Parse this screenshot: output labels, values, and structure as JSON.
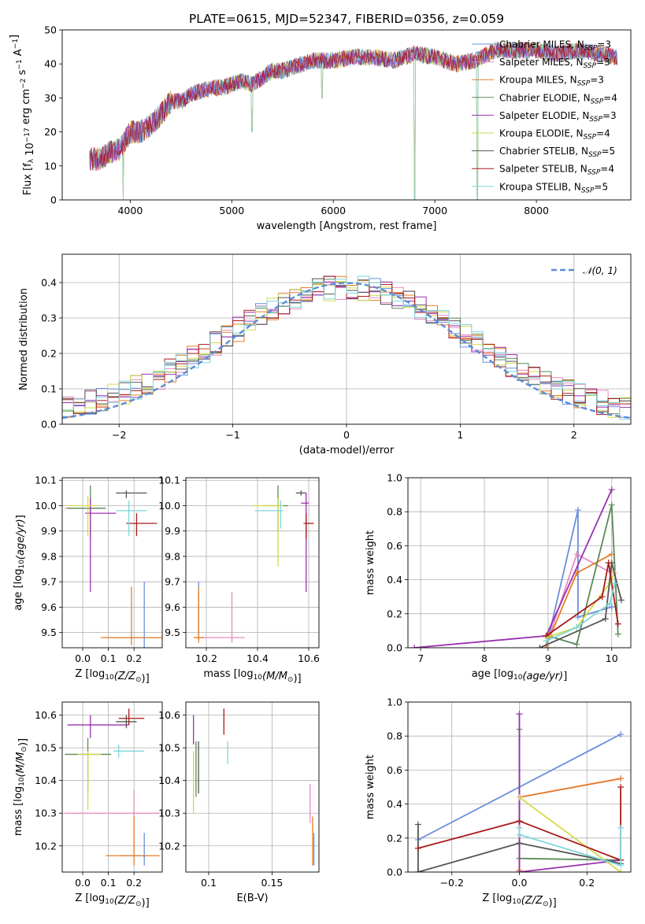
{
  "figure_title": "PLATE=0615, MJD=52347, FIBERID=0356, z=0.059",
  "colors": {
    "cm": "#6a8fdc",
    "sm": "#e78ac3",
    "km": "#e87d24",
    "ce": "#5a8a5a",
    "se": "#9b30b0",
    "ke": "#d6d94a",
    "cs": "#555555",
    "ss": "#aa1a1a",
    "ks": "#7fd6dc"
  },
  "legend_spectrum": [
    {
      "key": "cm",
      "label": "Chabrier MILES, N",
      "sub": "SSP",
      "tail": "=3"
    },
    {
      "key": "sm",
      "label": "Salpeter MILES, N",
      "sub": "SSP",
      "tail": "=3"
    },
    {
      "key": "km",
      "label": "Kroupa MILES, N",
      "sub": "SSP",
      "tail": "=3"
    },
    {
      "key": "ce",
      "label": "Chabrier ELODIE, N",
      "sub": "SSP",
      "tail": "=4"
    },
    {
      "key": "se",
      "label": "Salpeter ELODIE, N",
      "sub": "SSP",
      "tail": "=3"
    },
    {
      "key": "ke",
      "label": "Kroupa ELODIE, N",
      "sub": "SSP",
      "tail": "=4"
    },
    {
      "key": "cs",
      "label": "Chabrier STELIB, N",
      "sub": "SSP",
      "tail": "=5"
    },
    {
      "key": "ss",
      "label": "Salpeter STELIB, N",
      "sub": "SSP",
      "tail": "=4"
    },
    {
      "key": "ks",
      "label": "Kroupa STELIB, N",
      "sub": "SSP",
      "tail": "=5"
    }
  ],
  "legend_hist": "𝒩(0, 1)",
  "chart_data": [
    {
      "id": "spectrum",
      "type": "line",
      "xlabel": "wavelength [Angstrom, rest frame]",
      "ylabel": "Flux [f_λ 10^-17 erg cm^-2 s^-1 A^-1]",
      "xlim": [
        3330,
        8930
      ],
      "ylim": [
        0,
        50
      ],
      "xticks": [
        4000,
        5000,
        6000,
        7000,
        8000
      ],
      "yticks": [
        0,
        10,
        20,
        30,
        40,
        50
      ],
      "grid": false,
      "legend": "top-right",
      "continuum": {
        "x": [
          3600,
          3700,
          3800,
          3900,
          4000,
          4100,
          4200,
          4300,
          4400,
          4500,
          4600,
          4700,
          4800,
          4900,
          5000,
          5100,
          5200,
          5300,
          5400,
          5500,
          5600,
          5700,
          5800,
          5900,
          6000,
          6200,
          6400,
          6600,
          6800,
          7000,
          7200,
          7400,
          7600,
          7800,
          8000,
          8200,
          8400,
          8600,
          8800
        ],
        "y": [
          12,
          12,
          14,
          15,
          20,
          20,
          22,
          25,
          29,
          29,
          31,
          32,
          33,
          33,
          34,
          35,
          34,
          36,
          38,
          38,
          39,
          40,
          41,
          41,
          41,
          42,
          42,
          41,
          43,
          42,
          40,
          41,
          44,
          44,
          44,
          43,
          44,
          43,
          42
        ]
      },
      "noise_amplitude": 2.5,
      "dips": [
        {
          "x": 3930,
          "y": 0
        },
        {
          "x": 5200,
          "y": 20
        },
        {
          "x": 5890,
          "y": 30
        },
        {
          "x": 6800,
          "y": 0
        },
        {
          "x": 7420,
          "y": 0
        }
      ]
    },
    {
      "id": "residual_histogram",
      "type": "histogram",
      "xlabel": "(data-model)/error",
      "ylabel": "Normed distribution",
      "xlim": [
        -2.5,
        2.5
      ],
      "ylim": [
        0,
        0.48
      ],
      "xticks": [
        -2,
        -1,
        0,
        1,
        2
      ],
      "yticks": [
        0.0,
        0.1,
        0.2,
        0.3,
        0.4
      ],
      "grid": true,
      "legend": "top-right",
      "bin_width": 0.1,
      "gaussian": {
        "mean": 0,
        "sigma": 1
      }
    },
    {
      "id": "age_vs_Z",
      "type": "errorbar",
      "xlabel": "Z [log10(Z/Z⊙)]",
      "ylabel": "age [log10(age/yr)]",
      "xlim": [
        -0.08,
        0.31
      ],
      "ylim": [
        9.44,
        10.11
      ],
      "xticks": [
        0.0,
        0.1,
        0.2
      ],
      "yticks": [
        9.5,
        9.6,
        9.7,
        9.8,
        9.9,
        10.0,
        10.1
      ],
      "grid": true,
      "points": [
        {
          "key": "cm",
          "x": 0.24,
          "y": 9.48,
          "xerr": [
            0.15,
            0.06
          ],
          "yerr": [
            0.06,
            0.22
          ]
        },
        {
          "key": "sm",
          "x": 0.03,
          "y": 9.99,
          "xerr": [
            0.1,
            0.04
          ],
          "yerr": [
            0.03,
            0.02
          ]
        },
        {
          "key": "km",
          "x": 0.19,
          "y": 9.48,
          "xerr": [
            0.12,
            0.12
          ],
          "yerr": [
            0.03,
            0.2
          ]
        },
        {
          "key": "ce",
          "x": 0.03,
          "y": 9.99,
          "xerr": [
            0.09,
            0.06
          ],
          "yerr": [
            0.12,
            0.09
          ]
        },
        {
          "key": "se",
          "x": 0.03,
          "y": 9.97,
          "xerr": [
            0.02,
            0.1
          ],
          "yerr": [
            0.31,
            0.06
          ]
        },
        {
          "key": "ke",
          "x": 0.02,
          "y": 10.0,
          "xerr": [
            0.08,
            0.04
          ],
          "yerr": [
            0.12,
            0.04
          ]
        },
        {
          "key": "cs",
          "x": 0.17,
          "y": 10.05,
          "xerr": [
            0.04,
            0.08
          ],
          "yerr": [
            0.02,
            0.01
          ]
        },
        {
          "key": "ss",
          "x": 0.21,
          "y": 9.93,
          "xerr": [
            0.04,
            0.08
          ],
          "yerr": [
            0.05,
            0.04
          ]
        },
        {
          "key": "ks",
          "x": 0.18,
          "y": 9.98,
          "xerr": [
            0.05,
            0.07
          ],
          "yerr": [
            0.1,
            0.04
          ]
        }
      ]
    },
    {
      "id": "age_vs_mass",
      "type": "errorbar",
      "xlabel": "mass [log10(M/M⊙)]",
      "ylabel": "",
      "xlim": [
        10.12,
        10.64
      ],
      "ylim": [
        9.44,
        10.11
      ],
      "xticks": [
        10.2,
        10.4,
        10.6
      ],
      "yticks": [
        9.5,
        9.6,
        9.7,
        9.8,
        9.9,
        10.0,
        10.1
      ],
      "grid": true,
      "points": [
        {
          "key": "cm",
          "x": 10.17,
          "y": 9.48,
          "xerr": [
            0.01,
            0.02
          ],
          "yerr": [
            0.01,
            0.22
          ]
        },
        {
          "key": "sm",
          "x": 10.3,
          "y": 9.48,
          "xerr": [
            0.14,
            0.05
          ],
          "yerr": [
            0.02,
            0.18
          ]
        },
        {
          "key": "km",
          "x": 10.17,
          "y": 9.48,
          "xerr": [
            0.02,
            0.02
          ],
          "yerr": [
            0.02,
            0.2
          ]
        },
        {
          "key": "ce",
          "x": 10.48,
          "y": 10.0,
          "xerr": [
            0.06,
            0.04
          ],
          "yerr": [
            0.1,
            0.08
          ]
        },
        {
          "key": "se",
          "x": 10.59,
          "y": 10.01,
          "xerr": [
            0.02,
            0.01
          ],
          "yerr": [
            0.35,
            0.04
          ]
        },
        {
          "key": "ke",
          "x": 10.48,
          "y": 10.0,
          "xerr": [
            0.1,
            0.02
          ],
          "yerr": [
            0.24,
            0.03
          ]
        },
        {
          "key": "cs",
          "x": 10.57,
          "y": 10.05,
          "xerr": [
            0.02,
            0.02
          ],
          "yerr": [
            0.01,
            0.01
          ]
        },
        {
          "key": "ss",
          "x": 10.59,
          "y": 9.93,
          "xerr": [
            0.01,
            0.03
          ],
          "yerr": [
            0.06,
            0.04
          ]
        },
        {
          "key": "ks",
          "x": 10.49,
          "y": 9.98,
          "xerr": [
            0.1,
            0.01
          ],
          "yerr": [
            0.07,
            0.04
          ]
        }
      ]
    },
    {
      "id": "weight_vs_age",
      "type": "line",
      "xlabel": "age [log10(age/yr)]",
      "ylabel": "mass weight",
      "xlim": [
        6.8,
        10.3
      ],
      "ylim": [
        0,
        1.0
      ],
      "xticks": [
        7,
        8,
        9,
        10
      ],
      "yticks": [
        0.0,
        0.2,
        0.4,
        0.6,
        0.8,
        1.0
      ],
      "grid": true,
      "series": [
        {
          "key": "cm",
          "x": [
            8.97,
            9.47,
            9.47,
            10.0
          ],
          "y": [
            0.0,
            0.81,
            0.18,
            0.24
          ]
        },
        {
          "key": "sm",
          "x": [
            8.97,
            9.45,
            10.0
          ],
          "y": [
            0.01,
            0.55,
            0.44
          ]
        },
        {
          "key": "km",
          "x": [
            8.97,
            9.45,
            10.0
          ],
          "y": [
            0.01,
            0.44,
            0.55
          ]
        },
        {
          "key": "ce",
          "x": [
            9.0,
            9.45,
            10.0,
            10.1
          ],
          "y": [
            0.07,
            0.02,
            0.84,
            0.08
          ]
        },
        {
          "key": "se",
          "x": [
            6.9,
            8.97,
            10.0
          ],
          "y": [
            0.0,
            0.07,
            0.93
          ]
        },
        {
          "key": "ke",
          "x": [
            8.97,
            9.45,
            9.97,
            10.05
          ],
          "y": [
            0.06,
            0.12,
            0.38,
            0.44
          ]
        },
        {
          "key": "cs",
          "x": [
            8.87,
            9.9,
            10.0,
            10.15
          ],
          "y": [
            0.0,
            0.17,
            0.5,
            0.28
          ]
        },
        {
          "key": "ss",
          "x": [
            8.97,
            9.85,
            9.95,
            10.1
          ],
          "y": [
            0.07,
            0.3,
            0.5,
            0.14
          ]
        },
        {
          "key": "ks",
          "x": [
            8.97,
            9.45,
            9.97,
            10.05
          ],
          "y": [
            0.04,
            0.12,
            0.26,
            0.38
          ]
        }
      ]
    },
    {
      "id": "mass_vs_Z",
      "type": "errorbar",
      "xlabel": "Z [log10(Z/Z⊙)]",
      "ylabel": "mass [log10(M/M⊙)]",
      "xlim": [
        -0.08,
        0.31
      ],
      "ylim": [
        10.12,
        10.64
      ],
      "xticks": [
        0.0,
        0.1,
        0.2
      ],
      "yticks": [
        10.2,
        10.3,
        10.4,
        10.5,
        10.6
      ],
      "grid": true,
      "points": [
        {
          "key": "cm",
          "x": 0.24,
          "y": 10.17,
          "xerr": [
            0.09,
            0.01
          ],
          "yerr": [
            0.03,
            0.07
          ]
        },
        {
          "key": "sm",
          "x": 0.2,
          "y": 10.3,
          "xerr": [
            0.27,
            0.1
          ],
          "yerr": [
            0.11,
            0.07
          ]
        },
        {
          "key": "km",
          "x": 0.2,
          "y": 10.17,
          "xerr": [
            0.11,
            0.1
          ],
          "yerr": [
            0.03,
            0.12
          ]
        },
        {
          "key": "ce",
          "x": 0.02,
          "y": 10.48,
          "xerr": [
            0.09,
            0.09
          ],
          "yerr": [
            0.12,
            0.05
          ]
        },
        {
          "key": "se",
          "x": 0.03,
          "y": 10.57,
          "xerr": [
            0.09,
            0.15
          ],
          "yerr": [
            0.04,
            0.03
          ]
        },
        {
          "key": "ke",
          "x": 0.02,
          "y": 10.48,
          "xerr": [
            0.04,
            0.05
          ],
          "yerr": [
            0.17,
            0.01
          ]
        },
        {
          "key": "cs",
          "x": 0.17,
          "y": 10.58,
          "xerr": [
            0.04,
            0.04
          ],
          "yerr": [
            0.02,
            0.02
          ]
        },
        {
          "key": "ss",
          "x": 0.18,
          "y": 10.59,
          "xerr": [
            0.04,
            0.06
          ],
          "yerr": [
            0.02,
            0.03
          ]
        },
        {
          "key": "ks",
          "x": 0.14,
          "y": 10.49,
          "xerr": [
            0.02,
            0.1
          ],
          "yerr": [
            0.02,
            0.02
          ]
        }
      ]
    },
    {
      "id": "mass_vs_EBV",
      "type": "errorbar",
      "xlabel": "E(B-V)",
      "ylabel": "",
      "xlim": [
        0.082,
        0.187
      ],
      "ylim": [
        10.12,
        10.64
      ],
      "xticks": [
        0.1,
        0.15
      ],
      "yticks": [
        10.2,
        10.3,
        10.4,
        10.5,
        10.6
      ],
      "grid": true,
      "points": [
        {
          "key": "cm",
          "x": 0.183,
          "y": 10.18,
          "xerr": [
            0,
            0
          ],
          "yerr": [
            0.04,
            0.06
          ]
        },
        {
          "key": "sm",
          "x": 0.18,
          "y": 10.33,
          "xerr": [
            0,
            0
          ],
          "yerr": [
            0.06,
            0.06
          ]
        },
        {
          "key": "km",
          "x": 0.182,
          "y": 10.17,
          "xerr": [
            0,
            0
          ],
          "yerr": [
            0.03,
            0.12
          ]
        },
        {
          "key": "ce",
          "x": 0.09,
          "y": 10.48,
          "xerr": [
            0,
            0
          ],
          "yerr": [
            0.13,
            0.04
          ]
        },
        {
          "key": "se",
          "x": 0.088,
          "y": 10.56,
          "xerr": [
            0,
            0
          ],
          "yerr": [
            0.05,
            0.04
          ]
        },
        {
          "key": "ke",
          "x": 0.088,
          "y": 10.43,
          "xerr": [
            0,
            0
          ],
          "yerr": [
            0.13,
            0.06
          ]
        },
        {
          "key": "cs",
          "x": 0.092,
          "y": 10.45,
          "xerr": [
            0,
            0
          ],
          "yerr": [
            0.09,
            0.07
          ]
        },
        {
          "key": "ss",
          "x": 0.112,
          "y": 10.57,
          "xerr": [
            0,
            0
          ],
          "yerr": [
            0.03,
            0.05
          ]
        },
        {
          "key": "ks",
          "x": 0.115,
          "y": 10.49,
          "xerr": [
            0,
            0
          ],
          "yerr": [
            0.04,
            0.03
          ]
        }
      ]
    },
    {
      "id": "weight_vs_Z",
      "type": "line",
      "xlabel": "Z [log10(Z/Z⊙)]",
      "ylabel": "mass weight",
      "xlim": [
        -0.33,
        0.33
      ],
      "ylim": [
        0,
        1.0
      ],
      "xticks": [
        -0.2,
        0.0,
        0.2
      ],
      "yticks": [
        0.0,
        0.2,
        0.4,
        0.6,
        0.8,
        1.0
      ],
      "grid": true,
      "series": [
        {
          "key": "cm",
          "x": [
            -0.3,
            0.3
          ],
          "y": [
            0.19,
            0.81
          ]
        },
        {
          "key": "sm",
          "x": [
            0.0,
            0.3
          ],
          "y": [
            0.44,
            0.55
          ]
        },
        {
          "key": "km",
          "x": [
            0.0,
            0.0,
            0.3
          ],
          "y": [
            0.01,
            0.44,
            0.55
          ]
        },
        {
          "key": "ce",
          "x": [
            0.0,
            0.0,
            0.3
          ],
          "y": [
            0.84,
            0.08,
            0.07
          ]
        },
        {
          "key": "se",
          "x": [
            0.0,
            0.0,
            0.3
          ],
          "y": [
            0.93,
            0.0,
            0.07
          ]
        },
        {
          "key": "ke",
          "x": [
            0.0,
            0.3
          ],
          "y": [
            0.44,
            0.0
          ]
        },
        {
          "key": "cs",
          "x": [
            -0.3,
            -0.3,
            0.0,
            0.3
          ],
          "y": [
            0.28,
            0.0,
            0.17,
            0.05
          ]
        },
        {
          "key": "ss",
          "x": [
            -0.3,
            0.0,
            0.3,
            0.3
          ],
          "y": [
            0.14,
            0.3,
            0.07,
            0.5
          ]
        },
        {
          "key": "ks",
          "x": [
            0.0,
            0.0,
            0.3,
            0.3
          ],
          "y": [
            0.26,
            0.22,
            0.04,
            0.26
          ]
        }
      ]
    }
  ]
}
